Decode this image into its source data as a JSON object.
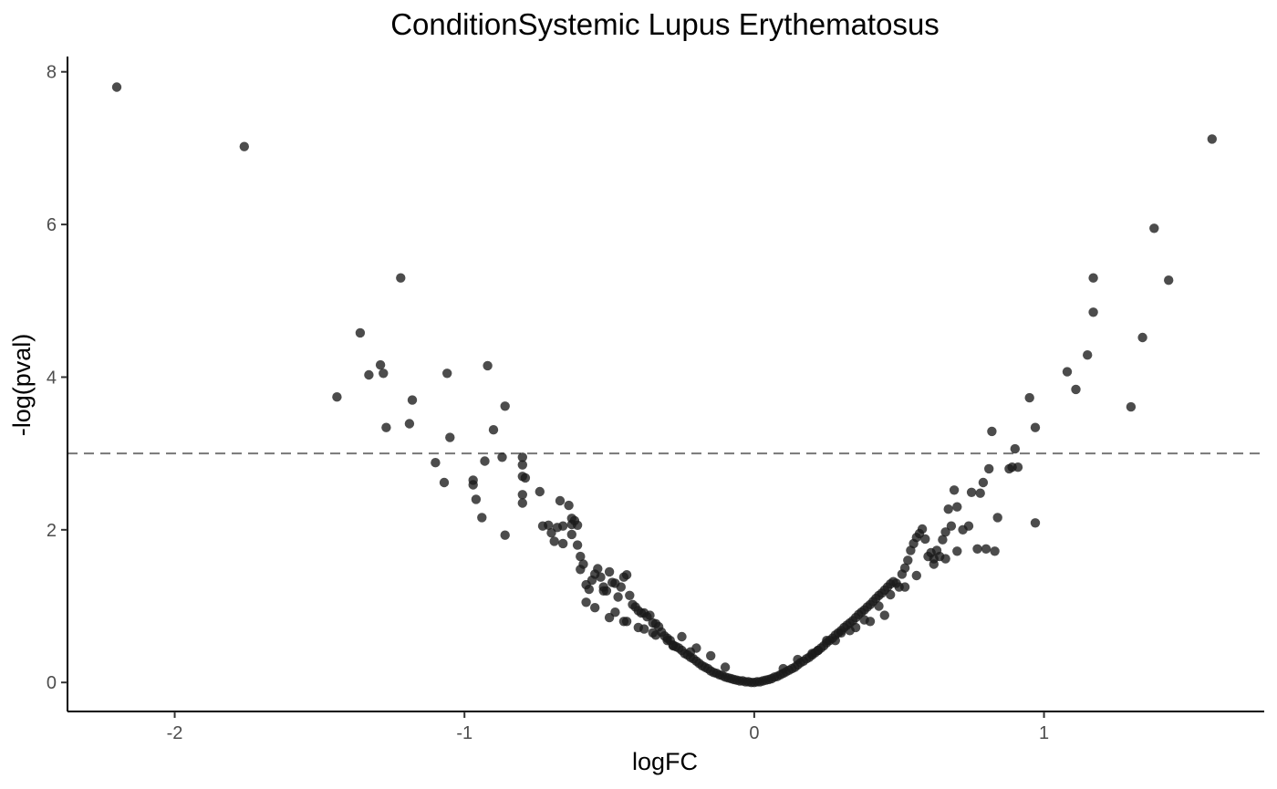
{
  "chart_data": {
    "type": "scatter",
    "title": "ConditionSystemic Lupus Erythematosus",
    "xlabel": "logFC",
    "ylabel": "-log(pval)",
    "xlim": [
      -2.37,
      1.76
    ],
    "ylim": [
      -0.38,
      8.2
    ],
    "x_ticks": [
      -2,
      -1,
      0,
      1
    ],
    "x_tick_labels": [
      "-2",
      "-1",
      "0",
      "1"
    ],
    "y_ticks": [
      0,
      2,
      4,
      6,
      8
    ],
    "y_tick_labels": [
      "0",
      "2",
      "4",
      "6",
      "8"
    ],
    "grid": false,
    "legend": "none",
    "threshold_line": {
      "y": 3,
      "style": "dashed",
      "color": "#777777"
    },
    "point_color": "#1a1a1a",
    "point_opacity": 0.78,
    "points": {
      "x": [
        -2.2,
        -1.76,
        -1.22,
        -1.36,
        -1.29,
        -1.33,
        -1.28,
        -1.44,
        -1.18,
        -1.27,
        -1.19,
        -1.1,
        -1.07,
        -1.06,
        -1.05,
        -0.92,
        -0.86,
        -0.9,
        -0.87,
        -0.93,
        -0.97,
        -0.97,
        -0.96,
        -0.94,
        -0.86,
        -0.8,
        -0.8,
        -0.8,
        -0.79,
        -0.8,
        -0.8,
        -0.74,
        -0.67,
        -0.64,
        -0.63,
        -0.62,
        -0.61,
        -0.63,
        -0.66,
        -0.68,
        -0.7,
        -0.71,
        -0.73,
        -0.69,
        -0.66,
        -0.63,
        -0.61,
        -0.6,
        -0.59,
        -0.6,
        -0.58,
        -0.57,
        -0.56,
        -0.55,
        -0.54,
        -0.53,
        -0.52,
        -0.51,
        -0.5,
        -0.49,
        -0.48,
        -0.47,
        -0.46,
        -0.45,
        -0.44,
        -0.43,
        -0.42,
        -0.41,
        -0.4,
        -0.39,
        -0.38,
        -0.37,
        -0.36,
        -0.35,
        -0.34,
        -0.33,
        -0.32,
        -0.31,
        -0.3,
        -0.29,
        -0.28,
        -0.27,
        -0.26,
        -0.25,
        -0.24,
        -0.23,
        -0.22,
        -0.21,
        -0.2,
        -0.19,
        -0.18,
        -0.17,
        -0.16,
        -0.15,
        -0.14,
        -0.13,
        -0.12,
        -0.11,
        -0.1,
        -0.09,
        -0.08,
        -0.07,
        -0.06,
        -0.05,
        -0.04,
        -0.03,
        -0.02,
        -0.01,
        0.0,
        0.01,
        0.02,
        0.03,
        0.04,
        0.05,
        0.06,
        0.07,
        0.08,
        0.09,
        0.1,
        0.11,
        0.12,
        0.13,
        0.14,
        0.15,
        0.16,
        0.17,
        0.18,
        0.19,
        0.2,
        0.21,
        0.22,
        0.23,
        0.24,
        0.25,
        0.26,
        0.27,
        0.28,
        0.29,
        0.3,
        0.31,
        0.32,
        0.33,
        0.34,
        0.35,
        0.36,
        0.37,
        0.38,
        0.39,
        0.4,
        0.41,
        0.42,
        0.43,
        0.44,
        0.45,
        0.46,
        0.47,
        0.48,
        0.49,
        0.5,
        0.51,
        0.52,
        0.53,
        0.54,
        0.55,
        0.56,
        0.57,
        0.58,
        0.59,
        0.6,
        0.61,
        0.62,
        0.63,
        0.64,
        0.65,
        0.66,
        0.67,
        0.68,
        0.69,
        0.7,
        0.72,
        0.74,
        0.75,
        0.77,
        0.78,
        0.79,
        0.8,
        0.81,
        0.82,
        0.83,
        0.84,
        0.88,
        0.89,
        0.9,
        0.91,
        0.95,
        0.97,
        0.97,
        1.08,
        1.11,
        1.15,
        1.17,
        1.17,
        1.3,
        1.34,
        1.38,
        1.43,
        1.58,
        -0.55,
        -0.5,
        -0.45,
        -0.4,
        -0.35,
        -0.3,
        -0.25,
        -0.2,
        -0.15,
        -0.1,
        0.1,
        0.15,
        0.2,
        0.25,
        0.3,
        0.35,
        0.4,
        0.45,
        -0.58,
        -0.52,
        -0.48,
        -0.44,
        -0.38,
        -0.34,
        -0.28,
        -0.22,
        0.22,
        0.28,
        0.33,
        0.38,
        0.43,
        0.47,
        0.52,
        0.56,
        0.62,
        0.66,
        0.7
      ],
      "y": [
        7.8,
        7.02,
        5.3,
        4.58,
        4.16,
        4.03,
        4.05,
        3.74,
        3.7,
        3.34,
        3.39,
        2.88,
        2.62,
        4.05,
        3.21,
        4.15,
        3.62,
        3.31,
        2.95,
        2.9,
        2.65,
        2.59,
        2.4,
        2.16,
        1.93,
        2.95,
        2.85,
        2.7,
        2.68,
        2.46,
        2.35,
        2.5,
        2.38,
        2.32,
        2.15,
        2.12,
        2.06,
        2.07,
        2.05,
        2.03,
        1.96,
        2.06,
        2.05,
        1.85,
        1.82,
        1.94,
        1.8,
        1.65,
        1.55,
        1.48,
        1.28,
        1.22,
        1.34,
        1.42,
        1.49,
        1.38,
        1.25,
        1.2,
        1.45,
        1.31,
        1.3,
        1.12,
        1.25,
        1.38,
        1.41,
        1.14,
        1.02,
        0.99,
        0.94,
        0.91,
        0.91,
        0.86,
        0.88,
        0.78,
        0.77,
        0.73,
        0.66,
        0.61,
        0.58,
        0.55,
        0.49,
        0.47,
        0.45,
        0.42,
        0.38,
        0.36,
        0.33,
        0.31,
        0.28,
        0.25,
        0.22,
        0.2,
        0.18,
        0.15,
        0.13,
        0.12,
        0.1,
        0.09,
        0.07,
        0.06,
        0.05,
        0.04,
        0.03,
        0.02,
        0.02,
        0.01,
        0.01,
        0.0,
        0.0,
        0.01,
        0.01,
        0.02,
        0.03,
        0.04,
        0.05,
        0.07,
        0.08,
        0.1,
        0.12,
        0.14,
        0.16,
        0.18,
        0.2,
        0.23,
        0.26,
        0.28,
        0.31,
        0.33,
        0.36,
        0.39,
        0.42,
        0.45,
        0.48,
        0.52,
        0.55,
        0.58,
        0.62,
        0.65,
        0.68,
        0.72,
        0.75,
        0.78,
        0.81,
        0.85,
        0.89,
        0.92,
        0.95,
        0.99,
        1.02,
        1.06,
        1.1,
        1.14,
        1.17,
        1.21,
        1.25,
        1.29,
        1.32,
        1.3,
        1.25,
        1.42,
        1.5,
        1.6,
        1.73,
        1.82,
        1.9,
        1.95,
        2.01,
        1.88,
        1.65,
        1.7,
        1.62,
        1.73,
        1.65,
        1.87,
        1.97,
        2.27,
        2.05,
        2.52,
        2.3,
        2.0,
        2.05,
        2.49,
        1.75,
        2.48,
        2.62,
        1.75,
        2.8,
        3.29,
        1.72,
        2.16,
        2.8,
        2.82,
        3.06,
        2.82,
        3.73,
        3.34,
        2.09,
        4.07,
        3.84,
        4.29,
        4.85,
        5.3,
        3.61,
        4.52,
        5.95,
        5.27,
        7.12,
        0.98,
        0.85,
        0.8,
        0.72,
        0.65,
        0.55,
        0.6,
        0.45,
        0.35,
        0.2,
        0.18,
        0.3,
        0.38,
        0.55,
        0.65,
        0.72,
        0.8,
        0.88,
        1.05,
        1.2,
        0.92,
        0.8,
        0.7,
        0.62,
        0.48,
        0.4,
        0.42,
        0.55,
        0.68,
        0.82,
        1.0,
        1.15,
        1.25,
        1.4,
        1.55,
        1.62,
        1.72
      ]
    }
  }
}
